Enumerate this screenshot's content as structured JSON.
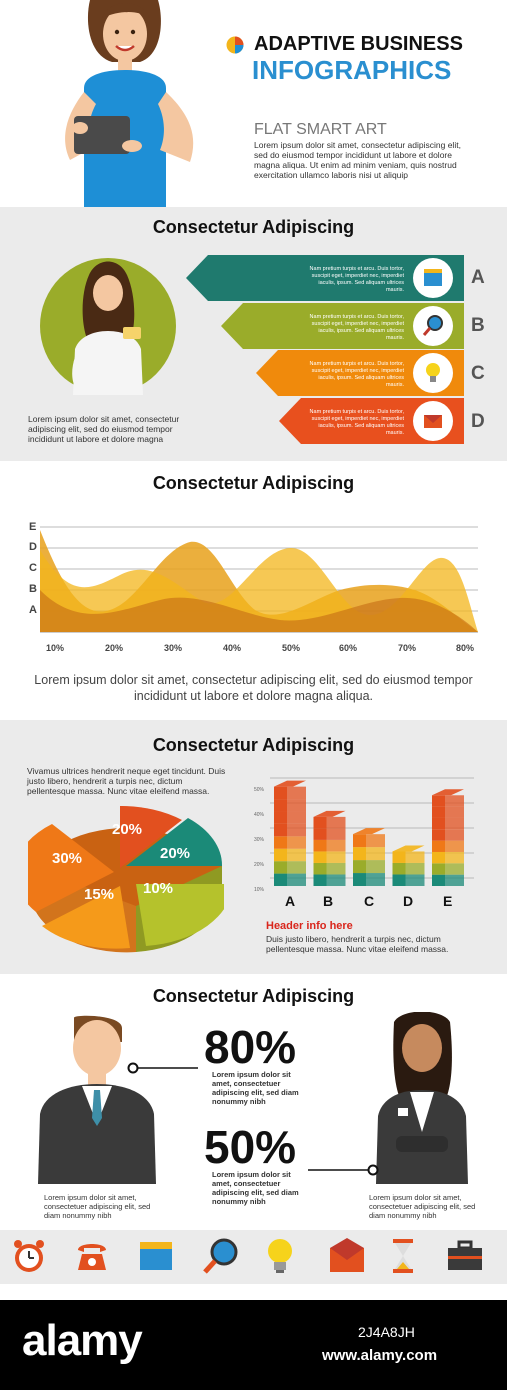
{
  "header": {
    "title_line1": "ADAPTIVE BUSINESS",
    "title_line2": "INFOGRAPHICS",
    "subtitle": "FLAT SMART ART",
    "body": "Lorem ipsum dolor sit amet, consectetur adipiscing elit, sed do eiusmod tempor incididunt ut labore et dolore magna aliqua. Ut enim ad minim veniam, quis nostrud exercitation ullamco laboris nisi ut aliquip",
    "colors": {
      "title1": "#111111",
      "title2": "#2a8fd0"
    }
  },
  "section1": {
    "title": "Consectetur Adipiscing",
    "caption": "Lorem ipsum dolor sit amet, consectetur adipiscing elit, sed do eiusmod tempor incididunt ut labore et dolore magna",
    "items": [
      {
        "letter": "A",
        "text": "Nam pretium turpis et arcu. Duis tortor, suscipit eget, imperdiet nec, imperdiet iaculis, ipsum. Sed aliquam ultrices mauris.",
        "icon": "notepad-icon",
        "color": "#1f7a6e"
      },
      {
        "letter": "B",
        "text": "Nam pretium turpis et arcu. Duis tortor, suscipit eget, imperdiet nec, imperdiet iaculis, ipsum. Sed aliquam ultrices mauris.",
        "icon": "magnifier-icon",
        "color": "#9aac2a"
      },
      {
        "letter": "C",
        "text": "Nam pretium turpis et arcu. Duis tortor, suscipit eget, imperdiet nec, imperdiet iaculis, ipsum. Sed aliquam ultrices mauris.",
        "icon": "lightbulb-icon",
        "color": "#f08a0c"
      },
      {
        "letter": "D",
        "text": "Nam pretium turpis et arcu. Duis tortor, suscipit eget, imperdiet nec, imperdiet iaculis, ipsum. Sed aliquam ultrices mauris.",
        "icon": "envelope-icon",
        "color": "#e8501e"
      }
    ]
  },
  "section2": {
    "title": "Consectetur Adipiscing",
    "caption": "Lorem ipsum dolor sit amet, consectetur adipiscing elit, sed do eiusmod tempor incididunt ut labore et dolore magna aliqua.",
    "chart_data": {
      "type": "area",
      "y_levels": [
        "A",
        "B",
        "C",
        "D",
        "E"
      ],
      "x": [
        "10%",
        "20%",
        "30%",
        "40%",
        "50%",
        "60%",
        "70%",
        "80%"
      ],
      "series_colors": [
        "#e8a11b",
        "#f3b51b",
        "#c46a14"
      ],
      "grid": true
    }
  },
  "section3": {
    "title": "Consectetur Adipiscing",
    "intro": "Vivamus ultrices hendrerit neque eget tincidunt. Duis justo libero, hendrerit a turpis nec, dictum pellentesque massa. Nunc vitae eleifend massa.",
    "pie": {
      "type": "pie",
      "slices": [
        {
          "label": "20%",
          "value": 20,
          "color": "#e2501f"
        },
        {
          "label": "20%",
          "value": 20,
          "color": "#1b8a78"
        },
        {
          "label": "10%",
          "value": 10,
          "color": "#b5c22c"
        },
        {
          "label": "15%",
          "value": 15,
          "color": "#f59a1a"
        },
        {
          "label": "30%",
          "value": 30,
          "color": "#ef7817"
        }
      ]
    },
    "bars": {
      "type": "bar",
      "categories": [
        "A",
        "B",
        "C",
        "D",
        "E"
      ],
      "y_ticks": [
        "50%",
        "40%",
        "30%",
        "20%",
        "10%"
      ],
      "values": [
        46,
        32,
        24,
        16,
        42
      ],
      "colors": [
        "#1b8a78",
        "#9aac2a",
        "#f3b51b",
        "#ef7817",
        "#e2501f"
      ]
    },
    "header_info": "Header info here",
    "footer": "Duis justo libero, hendrerit a turpis nec, dictum pellentesque massa. Nunc vitae eleifend massa."
  },
  "section4": {
    "title": "Consectetur Adipiscing",
    "stat1": {
      "value": "80%",
      "text": "Lorem ipsum dolor sit amet, consectetuer adipiscing elit, sed diam nonummy nibh"
    },
    "stat2": {
      "value": "50%",
      "text": "Lorem ipsum dolor sit amet, consectetuer adipiscing elit, sed diam nonummy nibh"
    },
    "man_caption": "Lorem ipsum dolor sit amet, consectetuer adipiscing elit, sed diam nonummy nibh",
    "woman_caption": "Lorem ipsum dolor sit amet, consectetuer adipiscing elit, sed diam nonummy nibh"
  },
  "icon_bar": [
    "alarm-clock-icon",
    "telephone-icon",
    "notepad-icon",
    "magnifier-icon",
    "lightbulb-icon",
    "envelope-icon",
    "hourglass-icon",
    "briefcase-icon"
  ],
  "watermark": {
    "brand": "alamy",
    "image_id": "2J4A8JH",
    "url": "www.alamy.com"
  }
}
